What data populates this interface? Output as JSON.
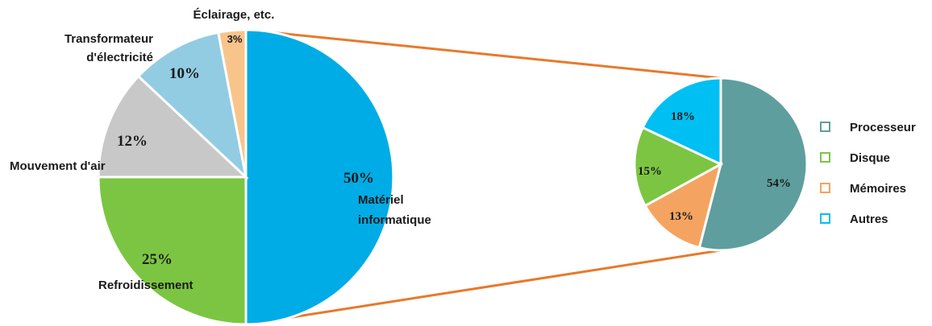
{
  "chart_data": [
    {
      "type": "pie",
      "categories": [
        "Matériel informatique",
        "Refroidissement",
        "Mouvement d'air",
        "Transformateur d'électricité",
        "Éclairage, etc."
      ],
      "label_lines": [
        [
          "Matériel",
          "informatique"
        ],
        [
          "Refroidissement"
        ],
        [
          "Mouvement d'air"
        ],
        [
          "Transformateur",
          "d'électricité"
        ],
        [
          "Éclairage, etc."
        ]
      ],
      "values": [
        50,
        25,
        12,
        10,
        3
      ],
      "value_labels": [
        "50%",
        "25%",
        "12%",
        "10%",
        "3%"
      ],
      "colors": [
        "#00ace6",
        "#7cc542",
        "#c8c8c8",
        "#92cce3",
        "#f9c48c"
      ]
    },
    {
      "type": "pie",
      "categories": [
        "Processeur",
        "Disque",
        "Mémoires",
        "Autres"
      ],
      "values": [
        54,
        15,
        13,
        18
      ],
      "slice_order": [
        "Processeur",
        "Mémoires",
        "Disque",
        "Autres"
      ],
      "value_labels": {
        "Processeur": "54%",
        "Disque": "15%",
        "Mémoires": "13%",
        "Autres": "18%"
      },
      "colors": {
        "Processeur": "#5e9e9e",
        "Disque": "#7cc542",
        "Mémoires": "#f4a460",
        "Autres": "#00bff3"
      },
      "legend": "right"
    }
  ],
  "connector_color": "#e8792b"
}
